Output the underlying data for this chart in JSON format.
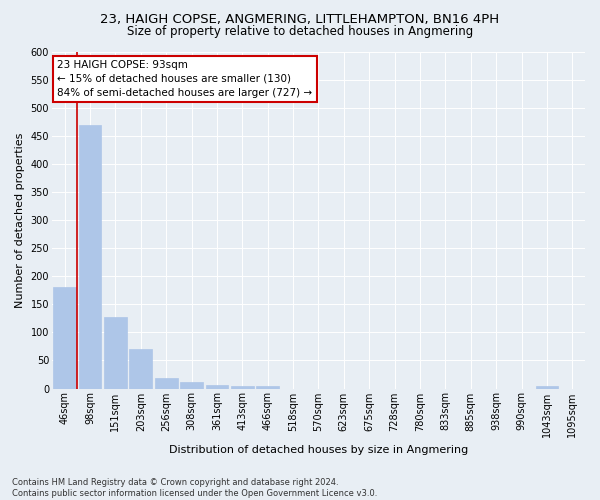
{
  "title": "23, HAIGH COPSE, ANGMERING, LITTLEHAMPTON, BN16 4PH",
  "subtitle": "Size of property relative to detached houses in Angmering",
  "xlabel": "Distribution of detached houses by size in Angmering",
  "ylabel": "Number of detached properties",
  "bar_labels": [
    "46sqm",
    "98sqm",
    "151sqm",
    "203sqm",
    "256sqm",
    "308sqm",
    "361sqm",
    "413sqm",
    "466sqm",
    "518sqm",
    "570sqm",
    "623sqm",
    "675sqm",
    "728sqm",
    "780sqm",
    "833sqm",
    "885sqm",
    "938sqm",
    "990sqm",
    "1043sqm",
    "1095sqm"
  ],
  "bar_values": [
    180,
    470,
    128,
    70,
    18,
    12,
    7,
    5,
    5,
    0,
    0,
    0,
    0,
    0,
    0,
    0,
    0,
    0,
    0,
    5,
    0
  ],
  "bar_color": "#aec6e8",
  "bar_edgecolor": "#aec6e8",
  "vline_color": "#cc0000",
  "annotation_text": "23 HAIGH COPSE: 93sqm\n← 15% of detached houses are smaller (130)\n84% of semi-detached houses are larger (727) →",
  "annotation_box_color": "#ffffff",
  "annotation_box_edgecolor": "#cc0000",
  "ylim": [
    0,
    600
  ],
  "yticks": [
    0,
    50,
    100,
    150,
    200,
    250,
    300,
    350,
    400,
    450,
    500,
    550,
    600
  ],
  "bg_color": "#e8eef4",
  "plot_bg_color": "#e8eef4",
  "footer_text": "Contains HM Land Registry data © Crown copyright and database right 2024.\nContains public sector information licensed under the Open Government Licence v3.0.",
  "title_fontsize": 9.5,
  "subtitle_fontsize": 8.5,
  "xlabel_fontsize": 8,
  "ylabel_fontsize": 8,
  "annotation_fontsize": 7.5,
  "tick_fontsize": 7,
  "footer_fontsize": 6
}
